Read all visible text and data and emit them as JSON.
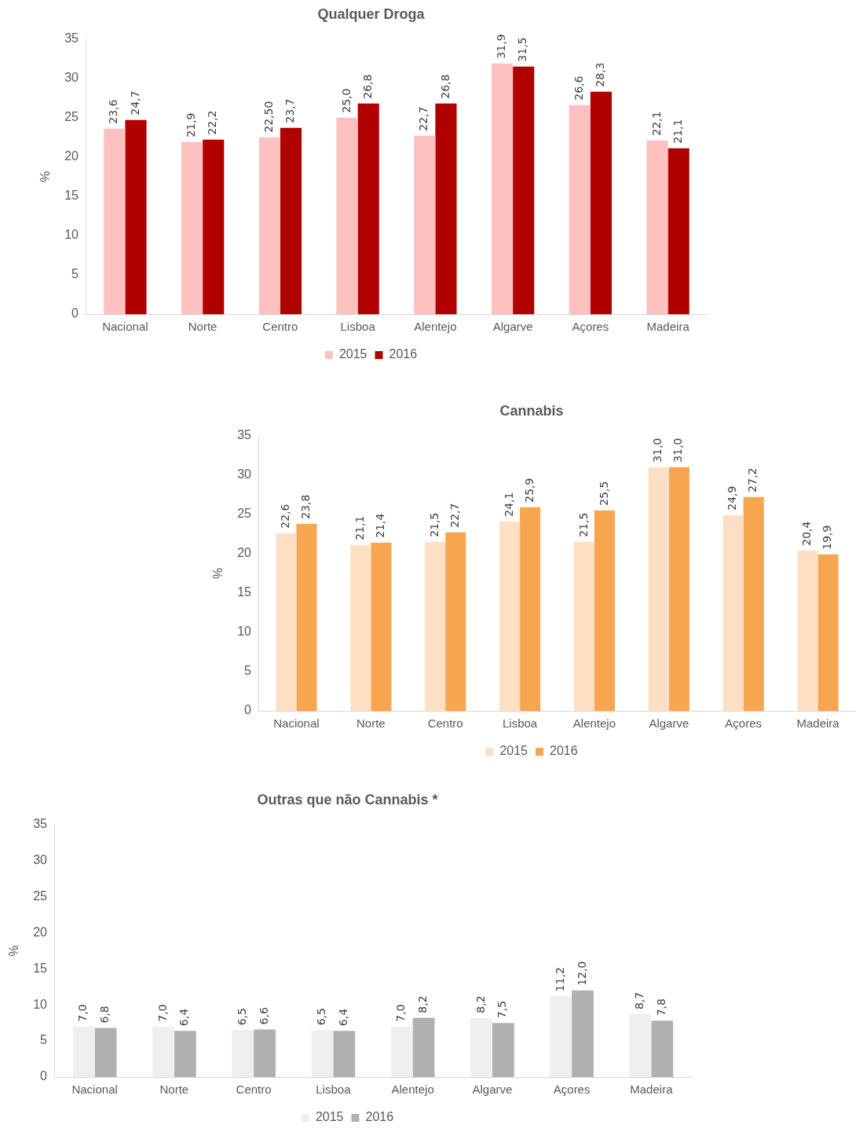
{
  "chart_data": [
    {
      "type": "bar",
      "title": "Qualquer Droga",
      "ylabel": "%",
      "categories": [
        "Nacional",
        "Norte",
        "Centro",
        "Lisboa",
        "Alentejo",
        "Algarve",
        "Açores",
        "Madeira"
      ],
      "series": [
        {
          "name": "2015",
          "color": "#ffc0c0",
          "values": [
            23.6,
            21.9,
            22.5,
            25.0,
            22.7,
            31.9,
            26.6,
            22.1
          ],
          "value_labels": [
            "23,6",
            "21,9",
            "22,50",
            "25,0",
            "22,7",
            "31,9",
            "26,6",
            "22,1"
          ]
        },
        {
          "name": "2016",
          "color": "#b00000",
          "values": [
            24.7,
            22.2,
            23.7,
            26.8,
            26.8,
            31.5,
            28.3,
            21.1
          ],
          "value_labels": [
            "24,7",
            "22,2",
            "23,7",
            "26,8",
            "26,8",
            "31,5",
            "28,3",
            "21,1"
          ]
        }
      ],
      "ylim": [
        0,
        35
      ],
      "yticks": [
        0,
        5,
        10,
        15,
        20,
        25,
        30,
        35
      ],
      "grid": false,
      "legend": "bottom"
    },
    {
      "type": "bar",
      "title": "Cannabis",
      "ylabel": "%",
      "categories": [
        "Nacional",
        "Norte",
        "Centro",
        "Lisboa",
        "Alentejo",
        "Algarve",
        "Açores",
        "Madeira"
      ],
      "series": [
        {
          "name": "2015",
          "color": "#fde0c4",
          "values": [
            22.6,
            21.1,
            21.5,
            24.1,
            21.5,
            31.0,
            24.9,
            20.4
          ],
          "value_labels": [
            "22,6",
            "21,1",
            "21,5",
            "24,1",
            "21,5",
            "31,0",
            "24,9",
            "20,4"
          ]
        },
        {
          "name": "2016",
          "color": "#f8a550",
          "values": [
            23.8,
            21.4,
            22.7,
            25.9,
            25.5,
            31.0,
            27.2,
            19.9
          ],
          "value_labels": [
            "23,8",
            "21,4",
            "22,7",
            "25,9",
            "25,5",
            "31,0",
            "27,2",
            "19,9"
          ]
        }
      ],
      "ylim": [
        0,
        35
      ],
      "yticks": [
        0,
        5,
        10,
        15,
        20,
        25,
        30,
        35
      ],
      "grid": false,
      "legend": "bottom"
    },
    {
      "type": "bar",
      "title": "Outras que não Cannabis *",
      "ylabel": "%",
      "categories": [
        "Nacional",
        "Norte",
        "Centro",
        "Lisboa",
        "Alentejo",
        "Algarve",
        "Açores",
        "Madeira"
      ],
      "series": [
        {
          "name": "2015",
          "color": "#efefef",
          "values": [
            7.0,
            7.0,
            6.5,
            6.5,
            7.0,
            8.2,
            11.2,
            8.7
          ],
          "value_labels": [
            "7,0",
            "7,0",
            "6,5",
            "6,5",
            "7,0",
            "8,2",
            "11,2",
            "8,7"
          ]
        },
        {
          "name": "2016",
          "color": "#b0b0b0",
          "values": [
            6.8,
            6.4,
            6.6,
            6.4,
            8.2,
            7.5,
            12.0,
            7.8
          ],
          "value_labels": [
            "6,8",
            "6,4",
            "6,6",
            "6,4",
            "8,2",
            "7,5",
            "12,0",
            "7,8"
          ]
        }
      ],
      "ylim": [
        0,
        35
      ],
      "yticks": [
        0,
        5,
        10,
        15,
        20,
        25,
        30,
        35
      ],
      "grid": false,
      "legend": "bottom"
    }
  ]
}
